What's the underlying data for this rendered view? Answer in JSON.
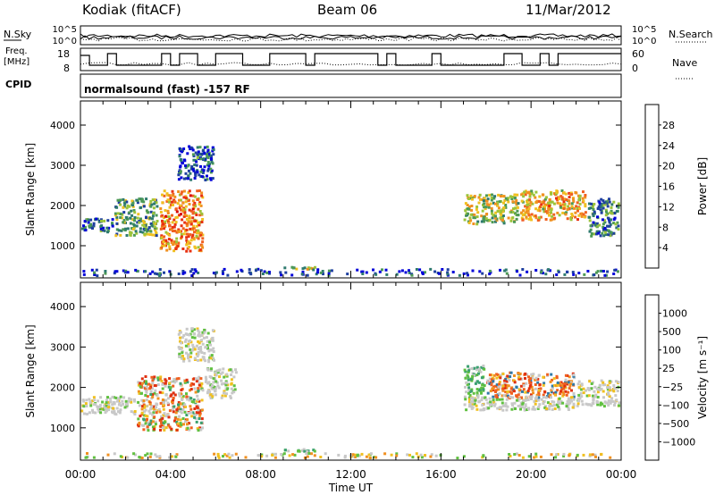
{
  "header": {
    "station": "Kodiak (fitACF)",
    "beam": "Beam 06",
    "date": "11/Mar/2012"
  },
  "panels": {
    "nsky_label": "N.Sky",
    "nsky_ticks": [
      "10^5",
      "10^0"
    ],
    "nsearch_label": "N.Search",
    "nsearch_ticks": [
      "10^5",
      "10^0"
    ],
    "freq_label": "Freq.",
    "freq_unit": "[MHz]",
    "freq_ticks": [
      "18",
      "8"
    ],
    "nave_label": "Nave",
    "nave_ticks": [
      "60",
      "0"
    ],
    "cpid_label": "CPID",
    "cpid_text": "normalsound (fast) -157 RF"
  },
  "chart_data": [
    {
      "type": "heatmap",
      "name": "power",
      "ylabel": "Slant Range [km]",
      "yticks": [
        1000,
        2000,
        3000,
        4000
      ],
      "ylim": [
        200,
        4600
      ],
      "xlim": [
        0,
        24
      ],
      "colorbar": {
        "label": "Power [dB]",
        "ticks": [
          "28",
          "24",
          "20",
          "16",
          "12",
          "8",
          "4"
        ],
        "colors": [
          "#0000d8",
          "#1e3fa0",
          "#2e7a6e",
          "#4d9a55",
          "#9cc43a",
          "#f0c020",
          "#f09020",
          "#f06020",
          "#e83010",
          "#d80000"
        ]
      },
      "regions": [
        {
          "x": [
            0.0,
            1.5
          ],
          "y": [
            1300,
            1700
          ],
          "level": 0.2
        },
        {
          "x": [
            1.5,
            3.5
          ],
          "y": [
            1200,
            2200
          ],
          "level": 0.35
        },
        {
          "x": [
            3.5,
            5.5
          ],
          "y": [
            800,
            2400
          ],
          "level": 0.7
        },
        {
          "x": [
            4.3,
            6.0
          ],
          "y": [
            2600,
            3500
          ],
          "level": 0.15
        },
        {
          "x": [
            9.0,
            10.5
          ],
          "y": [
            380,
            500
          ],
          "level": 0.45
        },
        {
          "x": [
            17.0,
            19.5
          ],
          "y": [
            1500,
            2300
          ],
          "level": 0.45
        },
        {
          "x": [
            19.5,
            22.5
          ],
          "y": [
            1600,
            2400
          ],
          "level": 0.6
        },
        {
          "x": [
            22.5,
            24.0
          ],
          "y": [
            1200,
            2200
          ],
          "level": 0.25
        },
        {
          "x": [
            0.0,
            24.0
          ],
          "y": [
            220,
            450
          ],
          "level": 0.1
        }
      ]
    },
    {
      "type": "heatmap",
      "name": "velocity",
      "xlabel": "Time UT",
      "xticks": [
        "00:00",
        "04:00",
        "08:00",
        "12:00",
        "16:00",
        "20:00",
        "00:00"
      ],
      "ylabel": "Slant Range [km]",
      "yticks": [
        1000,
        2000,
        3000,
        4000
      ],
      "ylim": [
        200,
        4600
      ],
      "xlim": [
        0,
        24
      ],
      "colorbar": {
        "label": "Velocity [m s⁻¹]",
        "ticks": [
          "1000",
          "500",
          "100",
          "25",
          "−25",
          "−100",
          "−500",
          "−1000"
        ],
        "colors": [
          "#2048b0",
          "#2f7aa8",
          "#3aa070",
          "#60c040",
          "#c8c8c8",
          "#f0c020",
          "#f09020",
          "#f06020",
          "#e03010",
          "#d80000"
        ]
      },
      "regions": [
        {
          "x": [
            0.0,
            2.5
          ],
          "y": [
            1300,
            1800
          ],
          "cls": "gray"
        },
        {
          "x": [
            2.5,
            5.5
          ],
          "y": [
            900,
            2300
          ],
          "cls": "mixed"
        },
        {
          "x": [
            5.5,
            7.0
          ],
          "y": [
            1700,
            2500
          ],
          "cls": "gray"
        },
        {
          "x": [
            4.3,
            6.0
          ],
          "y": [
            2600,
            3500
          ],
          "cls": "gray"
        },
        {
          "x": [
            9.0,
            10.5
          ],
          "y": [
            380,
            500
          ],
          "cls": "green"
        },
        {
          "x": [
            17.0,
            18.0
          ],
          "y": [
            1700,
            2600
          ],
          "cls": "green"
        },
        {
          "x": [
            18.0,
            22.0
          ],
          "y": [
            1700,
            2400
          ],
          "cls": "orange"
        },
        {
          "x": [
            17.0,
            22.0
          ],
          "y": [
            1400,
            1800
          ],
          "cls": "gray"
        },
        {
          "x": [
            22.0,
            24.0
          ],
          "y": [
            1500,
            2200
          ],
          "cls": "gray"
        },
        {
          "x": [
            0.0,
            24.0
          ],
          "y": [
            220,
            400
          ],
          "cls": "sparse"
        }
      ]
    }
  ]
}
